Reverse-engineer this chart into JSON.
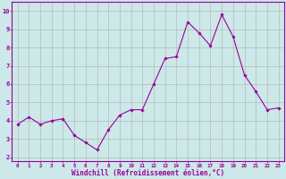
{
  "x": [
    0,
    1,
    2,
    3,
    4,
    5,
    6,
    7,
    8,
    9,
    10,
    11,
    12,
    13,
    14,
    15,
    16,
    17,
    18,
    19,
    20,
    21,
    22,
    23
  ],
  "y": [
    3.8,
    4.2,
    3.8,
    4.0,
    4.1,
    3.2,
    2.8,
    2.4,
    3.5,
    4.3,
    4.6,
    4.6,
    6.0,
    7.4,
    7.5,
    9.4,
    8.8,
    8.1,
    9.8,
    8.6,
    6.5,
    5.6,
    4.6,
    4.7
  ],
  "line_color": "#990099",
  "marker": "D",
  "marker_size": 1.8,
  "bg_color": "#cce8e8",
  "grid_color": "#aaaaaa",
  "xlabel": "Windchill (Refroidissement éolien,°C)",
  "xlabel_color": "#990099",
  "tick_color": "#990099",
  "label_color": "#990099",
  "xlim": [
    -0.5,
    23.5
  ],
  "ylim": [
    1.8,
    10.5
  ],
  "yticks": [
    2,
    3,
    4,
    5,
    6,
    7,
    8,
    9,
    10
  ],
  "xticks": [
    0,
    1,
    2,
    3,
    4,
    5,
    6,
    7,
    8,
    9,
    10,
    11,
    12,
    13,
    14,
    15,
    16,
    17,
    18,
    19,
    20,
    21,
    22,
    23
  ]
}
